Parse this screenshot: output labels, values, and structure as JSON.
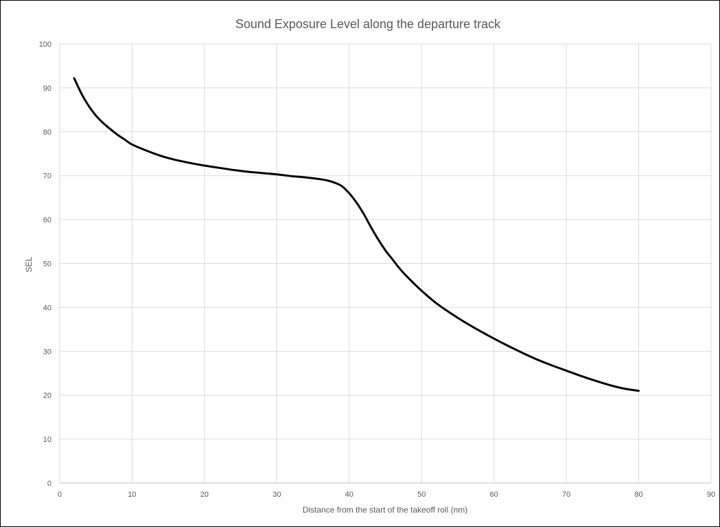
{
  "chart_data": {
    "type": "line",
    "title": "Sound Exposure Level along the departure track",
    "xlabel": "Distance from the start of the takeoff roll (nm)",
    "ylabel": "SEL",
    "xlim": [
      0,
      90
    ],
    "ylim": [
      0,
      100
    ],
    "x_ticks": [
      0,
      10,
      20,
      30,
      40,
      50,
      60,
      70,
      80,
      90
    ],
    "y_ticks": [
      0,
      10,
      20,
      30,
      40,
      50,
      60,
      70,
      80,
      90,
      100
    ],
    "grid": true,
    "legend": "none",
    "series": [
      {
        "color": "#000000",
        "points": [
          [
            2,
            92.2
          ],
          [
            3,
            88.7
          ],
          [
            4,
            85.9
          ],
          [
            5,
            83.7
          ],
          [
            6,
            82.0
          ],
          [
            7,
            80.6
          ],
          [
            8,
            79.3
          ],
          [
            9,
            78.2
          ],
          [
            10,
            77.1
          ],
          [
            12,
            75.7
          ],
          [
            14,
            74.5
          ],
          [
            16,
            73.6
          ],
          [
            18,
            72.9
          ],
          [
            20,
            72.3
          ],
          [
            22,
            71.8
          ],
          [
            24,
            71.3
          ],
          [
            26,
            70.9
          ],
          [
            28,
            70.6
          ],
          [
            30,
            70.3
          ],
          [
            32,
            69.9
          ],
          [
            34,
            69.6
          ],
          [
            36,
            69.2
          ],
          [
            37,
            68.9
          ],
          [
            38,
            68.4
          ],
          [
            39,
            67.6
          ],
          [
            40,
            66.0
          ],
          [
            41,
            63.9
          ],
          [
            42,
            61.3
          ],
          [
            43,
            58.3
          ],
          [
            44,
            55.5
          ],
          [
            45,
            53.0
          ],
          [
            46,
            50.9
          ],
          [
            47,
            48.8
          ],
          [
            48,
            47.0
          ],
          [
            50,
            43.8
          ],
          [
            52,
            41.0
          ],
          [
            54,
            38.7
          ],
          [
            56,
            36.6
          ],
          [
            58,
            34.7
          ],
          [
            60,
            32.9
          ],
          [
            62,
            31.2
          ],
          [
            64,
            29.6
          ],
          [
            66,
            28.1
          ],
          [
            68,
            26.8
          ],
          [
            70,
            25.6
          ],
          [
            72,
            24.4
          ],
          [
            74,
            23.3
          ],
          [
            76,
            22.3
          ],
          [
            78,
            21.5
          ],
          [
            80,
            21.0
          ]
        ]
      }
    ]
  }
}
